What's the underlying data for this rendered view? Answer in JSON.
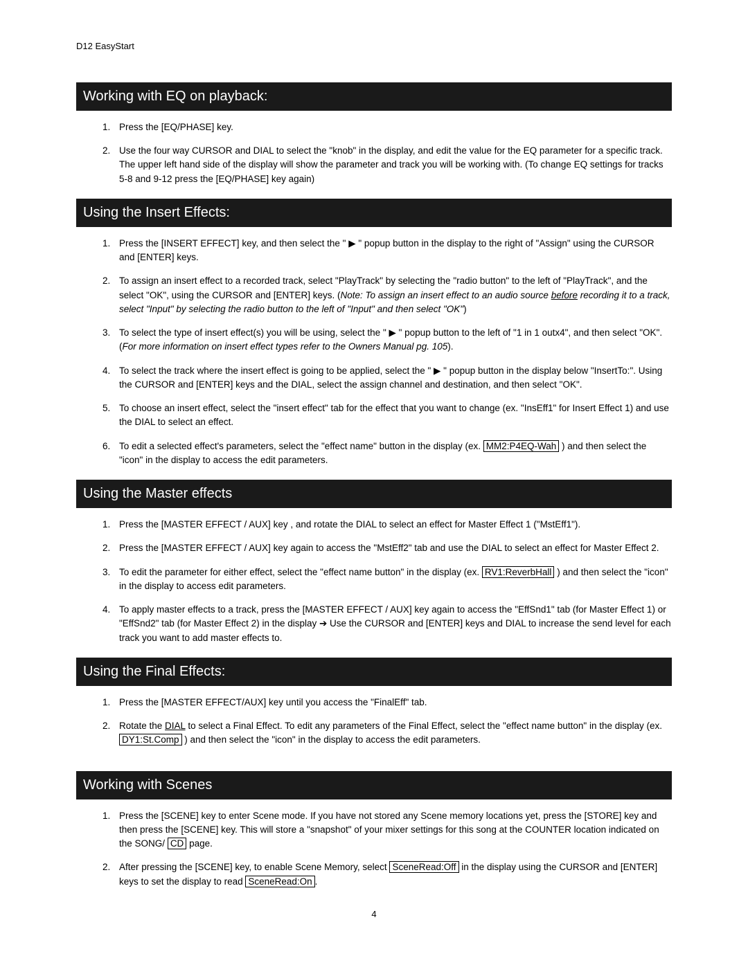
{
  "header": "D12 EasyStart",
  "page_number": "4",
  "sections": {
    "s1": {
      "title": "Working with EQ on playback:",
      "items": {
        "i1a": "Press the ",
        "i1b": "[EQ/PHASE]",
        "i1c": " key.",
        "i2a": "Use the four way ",
        "i2b": "CURSOR",
        "i2c": " and ",
        "i2d": "DIAL",
        "i2e": " to select the \"knob\" in the display, and edit the value for the EQ parameter for a specific track. The upper left hand side of the display will show the parameter and track you will be working with. (To change EQ settings for tracks 5-8 and 9-12 press the ",
        "i2f": "[EQ/PHASE]",
        "i2g": " key again)"
      }
    },
    "s2": {
      "title": "Using the Insert Effects:",
      "items": {
        "i1a": "Press the ",
        "i1b": "[INSERT EFFECT]",
        "i1c": " key, and then select the \" ▶ \" popup button in the display to the right of \"",
        "i1d": "Assign",
        "i1e": "\" using the ",
        "i1f": "CURSOR",
        "i1g": " and ",
        "i1h": "[ENTER]",
        "i1i": " keys.",
        "i2a": "To assign an insert effect to a recorded track, select \"PlayTrack\" by selecting the \"radio button\" to the left of \"",
        "i2b": "PlayTrack",
        "i2c": "\", and the select \"",
        "i2d": "OK",
        "i2e": "\", using the ",
        "i2f": "CURSOR",
        "i2g": " and ",
        "i2h": "[ENTER]",
        "i2i": " keys. (",
        "i2j": "Note: To assign an insert effect to an audio source ",
        "i2k": "before",
        "i2l": " recording it to a track, select \"Input\" by selecting the radio button to the left of \"Input\" and then select \"OK\"",
        "i2m": ")",
        "i3a": "To select the type of insert effect(s) you will be using, select the \" ▶ \" popup button to the left of \"",
        "i3b": "1 in 1 outx4",
        "i3c": "\", and then select \"",
        "i3d": "OK",
        "i3e": "\". (",
        "i3f": "For more information on insert effect types refer to the Owners Manual pg. 105",
        "i3g": ").",
        "i4a": "To select the track where the insert effect is going to be applied, select the \" ▶ \" popup button in the display below \"InsertTo:\". Using the ",
        "i4b": "CURSOR",
        "i4c": " and ",
        "i4d": "[ENTER]",
        "i4e": " keys and the ",
        "i4f": "DIAL",
        "i4g": ", select the assign channel and destination, and then select \"",
        "i4h": "OK",
        "i4i": "\".",
        "i5a": "To choose an insert effect, select the \"insert effect\" tab for the effect that you want to change (ex. \"",
        "i5b": "InsEff1",
        "i5c": "\" for Insert Effect 1) and use the ",
        "i5d": "DIAL",
        "i5e": " to select an effect.",
        "i6a": "To edit a selected effect's parameters, select the \"effect name\" button in the display (ex. ",
        "i6b": "MM2:P4EQ-Wah",
        "i6c": " ) and then select the \"icon\" in the display to access the edit parameters."
      }
    },
    "s3": {
      "title": "Using the Master effects",
      "items": {
        "i1a": "Press the ",
        "i1b": "[MASTER EFFECT / AUX]",
        "i1c": " key , and rotate the ",
        "i1d": "DIAL",
        "i1e": " to select an effect for Master Effect 1 (\"",
        "i1f": "MstEff1",
        "i1g": "\").",
        "i2a": "Press the ",
        "i2b": "[MASTER EFFECT / AUX]",
        "i2c": " key again to access the \"",
        "i2d": "MstEff2",
        "i2e": "\" tab and use the ",
        "i2f": "DIAL",
        "i2g": " to select an effect for Master Effect 2.",
        "i3a": "To edit the parameter for either effect, select the \"effect name button\" in the display (ex. ",
        "i3b": "RV1:ReverbHall",
        "i3c": " ) and then select the \"icon\" in the display to access edit parameters.",
        "i4a": "To apply master effects to a track, press the ",
        "i4b": "[MASTER EFFECT / AUX]",
        "i4c": " key again to access the \"",
        "i4d": "EffSnd1",
        "i4e": "\" tab (for Master Effect 1) or \"",
        "i4f": "EffSnd2",
        "i4g": "\" tab (for Master Effect 2)  in the display ➔ Use the ",
        "i4h": "CURSOR",
        "i4i": " and ",
        "i4j": "[ENTER]",
        "i4k": " keys and ",
        "i4l": "DIAL",
        "i4m": " to increase the send level for each track you want to add master effects to."
      }
    },
    "s4": {
      "title": "Using the Final Effects:",
      "items": {
        "i1a": "Press the ",
        "i1b": "[MASTER EFFECT/AUX]",
        "i1c": " key until you access the \"",
        "i1d": "FinalEff",
        "i1e": "\" tab.",
        "i2a": "Rotate the ",
        "i2b": "DIAL",
        "i2c": " to select a Final Effect. To edit any parameters of the Final Effect, select the \"effect name button\" in the display (ex. ",
        "i2d": "DY1:St.Comp",
        "i2e": " ) and then select the \"icon\" in the display to access the edit parameters."
      }
    },
    "s5": {
      "title": "Working with Scenes",
      "items": {
        "i1a": "Press the ",
        "i1b": "[SCENE]",
        "i1c": " key to enter Scene mode. If you have not stored any Scene memory locations yet, press the ",
        "i1d": "[STORE]",
        "i1e": " key and then press the ",
        "i1f": "[SCENE]",
        "i1g": " key. This will store a \"snapshot\" of your mixer settings for this song at the ",
        "i1h": "COUNTER",
        "i1i": " location indicated on the ",
        "i1j": "SONG/",
        "i1k": " ",
        "i1l": "CD",
        "i1m": " page.",
        "i2a": "After pressing the ",
        "i2b": "[SCENE]",
        "i2c": " key, to enable Scene Memory, select ",
        "i2d": "SceneRead:Off",
        "i2e": " in the display using the ",
        "i2f": "CURSOR",
        "i2g": " and ",
        "i2h": "[ENTER]",
        "i2i": " keys to set the display to read ",
        "i2j": "SceneRead:On",
        "i2k": "."
      }
    }
  }
}
